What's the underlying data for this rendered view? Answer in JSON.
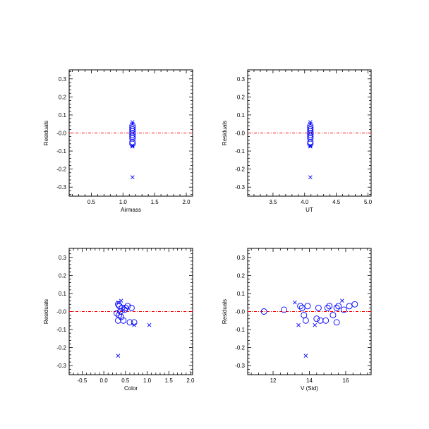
{
  "chart_data": [
    {
      "type": "scatter",
      "xlabel": "Airmass",
      "ylabel": "Residuals",
      "xlim": [
        0.15,
        2.1
      ],
      "ylim": [
        -0.35,
        0.35
      ],
      "xticks": [
        0.5,
        1.0,
        1.5,
        2.0
      ],
      "xtick_labels": [
        "0.5",
        "1.0",
        "1.5",
        "2.0"
      ],
      "yticks": [
        -0.3,
        -0.2,
        -0.1,
        0.0,
        0.1,
        0.2,
        0.3
      ],
      "ytick_labels": [
        "-0.3",
        "-0.2",
        "-0.1",
        "-0.0",
        "0.1",
        "0.2",
        "0.3"
      ],
      "reference_line_y": 0.0,
      "colors": {
        "points": "#0000ff",
        "reference": "#ff0000"
      },
      "circles": [
        {
          "x": 1.15,
          "y": 0.04
        },
        {
          "x": 1.15,
          "y": 0.03
        },
        {
          "x": 1.15,
          "y": 0.02
        },
        {
          "x": 1.15,
          "y": 0.01
        },
        {
          "x": 1.15,
          "y": 0.0
        },
        {
          "x": 1.15,
          "y": -0.01
        },
        {
          "x": 1.15,
          "y": -0.02
        },
        {
          "x": 1.15,
          "y": -0.03
        },
        {
          "x": 1.15,
          "y": -0.05
        },
        {
          "x": 1.15,
          "y": -0.06
        }
      ],
      "crosses": [
        {
          "x": 1.15,
          "y": 0.06
        },
        {
          "x": 1.15,
          "y": 0.05
        },
        {
          "x": 1.15,
          "y": -0.07
        },
        {
          "x": 1.15,
          "y": -0.075
        },
        {
          "x": 1.15,
          "y": -0.245
        }
      ]
    },
    {
      "type": "scatter",
      "xlabel": "UT",
      "ylabel": "Residuals",
      "xlim": [
        3.1,
        5.05
      ],
      "ylim": [
        -0.35,
        0.35
      ],
      "xticks": [
        3.5,
        4.0,
        4.5,
        5.0
      ],
      "xtick_labels": [
        "3.5",
        "4.0",
        "4.5",
        "5.0"
      ],
      "yticks": [
        -0.3,
        -0.2,
        -0.1,
        0.0,
        0.1,
        0.2,
        0.3
      ],
      "ytick_labels": [
        "-0.3",
        "-0.2",
        "-0.1",
        "-0.0",
        "0.1",
        "0.2",
        "0.3"
      ],
      "reference_line_y": 0.0,
      "colors": {
        "points": "#0000ff",
        "reference": "#ff0000"
      },
      "circles": [
        {
          "x": 4.09,
          "y": 0.04
        },
        {
          "x": 4.09,
          "y": 0.03
        },
        {
          "x": 4.09,
          "y": 0.02
        },
        {
          "x": 4.09,
          "y": 0.01
        },
        {
          "x": 4.09,
          "y": 0.0
        },
        {
          "x": 4.09,
          "y": -0.01
        },
        {
          "x": 4.09,
          "y": -0.02
        },
        {
          "x": 4.09,
          "y": -0.03
        },
        {
          "x": 4.09,
          "y": -0.05
        },
        {
          "x": 4.09,
          "y": -0.06
        }
      ],
      "crosses": [
        {
          "x": 4.09,
          "y": 0.06
        },
        {
          "x": 4.09,
          "y": 0.05
        },
        {
          "x": 4.09,
          "y": -0.07
        },
        {
          "x": 4.09,
          "y": -0.075
        },
        {
          "x": 4.09,
          "y": -0.245
        }
      ]
    },
    {
      "type": "scatter",
      "xlabel": "Color",
      "ylabel": "Residuals",
      "xlim": [
        -0.8,
        2.05
      ],
      "ylim": [
        -0.35,
        0.35
      ],
      "xticks": [
        -0.5,
        0.0,
        0.5,
        1.0,
        1.5,
        2.0
      ],
      "xtick_labels": [
        "-0.5",
        "0.0",
        "0.5",
        "1.0",
        "1.5",
        "2.0"
      ],
      "yticks": [
        -0.3,
        -0.2,
        -0.1,
        0.0,
        0.1,
        0.2,
        0.3
      ],
      "ytick_labels": [
        "-0.3",
        "-0.2",
        "-0.1",
        "-0.0",
        "0.1",
        "0.2",
        "0.3"
      ],
      "reference_line_y": 0.0,
      "colors": {
        "points": "#0000ff",
        "reference": "#ff0000"
      },
      "circles": [
        {
          "x": 0.33,
          "y": 0.04
        },
        {
          "x": 0.36,
          "y": 0.03
        },
        {
          "x": 0.42,
          "y": 0.02
        },
        {
          "x": 0.3,
          "y": -0.01
        },
        {
          "x": 0.35,
          "y": -0.02
        },
        {
          "x": 0.4,
          "y": -0.03
        },
        {
          "x": 0.33,
          "y": -0.05
        },
        {
          "x": 0.45,
          "y": -0.05
        },
        {
          "x": 0.6,
          "y": -0.06
        },
        {
          "x": 0.7,
          "y": -0.06
        },
        {
          "x": 0.5,
          "y": 0.02
        },
        {
          "x": 0.55,
          "y": 0.03
        },
        {
          "x": 0.48,
          "y": 0.01
        },
        {
          "x": 0.64,
          "y": 0.02
        },
        {
          "x": 0.38,
          "y": 0.0
        }
      ],
      "crosses": [
        {
          "x": 0.33,
          "y": 0.05
        },
        {
          "x": 0.4,
          "y": 0.06
        },
        {
          "x": 0.7,
          "y": -0.075
        },
        {
          "x": 1.05,
          "y": -0.075
        },
        {
          "x": 0.33,
          "y": -0.245
        }
      ]
    },
    {
      "type": "scatter",
      "xlabel": "V (Std)",
      "ylabel": "Residuals",
      "xlim": [
        10.6,
        17.4
      ],
      "ylim": [
        -0.35,
        0.35
      ],
      "xticks": [
        12,
        14,
        16
      ],
      "xtick_labels": [
        "12",
        "14",
        "16"
      ],
      "yticks": [
        -0.3,
        -0.2,
        -0.1,
        0.0,
        0.1,
        0.2,
        0.3
      ],
      "ytick_labels": [
        "-0.3",
        "-0.2",
        "-0.1",
        "-0.0",
        "0.1",
        "0.2",
        "0.3"
      ],
      "reference_line_y": 0.0,
      "colors": {
        "points": "#0000ff",
        "reference": "#ff0000"
      },
      "circles": [
        {
          "x": 11.5,
          "y": 0.0
        },
        {
          "x": 12.6,
          "y": 0.01
        },
        {
          "x": 13.5,
          "y": 0.03
        },
        {
          "x": 13.6,
          "y": 0.02
        },
        {
          "x": 13.7,
          "y": -0.02
        },
        {
          "x": 13.8,
          "y": -0.05
        },
        {
          "x": 13.9,
          "y": 0.03
        },
        {
          "x": 14.4,
          "y": -0.04
        },
        {
          "x": 14.5,
          "y": 0.02
        },
        {
          "x": 14.6,
          "y": -0.05
        },
        {
          "x": 14.9,
          "y": -0.05
        },
        {
          "x": 15.0,
          "y": 0.02
        },
        {
          "x": 15.1,
          "y": 0.03
        },
        {
          "x": 15.3,
          "y": -0.02
        },
        {
          "x": 15.5,
          "y": 0.02
        },
        {
          "x": 15.6,
          "y": 0.03
        },
        {
          "x": 15.5,
          "y": -0.06
        },
        {
          "x": 15.9,
          "y": 0.01
        },
        {
          "x": 16.2,
          "y": 0.03
        },
        {
          "x": 16.5,
          "y": 0.04
        }
      ],
      "crosses": [
        {
          "x": 13.2,
          "y": 0.05
        },
        {
          "x": 13.4,
          "y": -0.075
        },
        {
          "x": 14.3,
          "y": -0.075
        },
        {
          "x": 15.8,
          "y": 0.06
        },
        {
          "x": 13.8,
          "y": -0.245
        }
      ]
    }
  ]
}
